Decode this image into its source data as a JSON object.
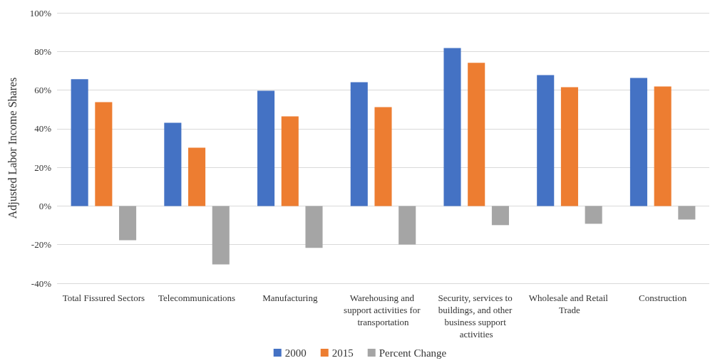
{
  "chart_data": {
    "type": "bar",
    "ylabel": "Adjusted Labor Income Shares",
    "categories": [
      "Total Fissured Sectors",
      "Telecommunications",
      "Manufacturing",
      "Warehousing and support activities for transportation",
      "Security, services to buildings, and other business support activities",
      "Wholesale and Retail Trade",
      "Construction"
    ],
    "series": [
      {
        "name": "2000",
        "color": "#4472c4",
        "values": [
          65.6,
          43.1,
          59.7,
          64.1,
          81.8,
          67.8,
          66.3
        ]
      },
      {
        "name": "2015",
        "color": "#ed7d31",
        "values": [
          53.8,
          30.2,
          46.4,
          51.2,
          74.1,
          61.5,
          61.9
        ]
      },
      {
        "name": "Percent Change",
        "color": "#a5a5a5",
        "values": [
          -17.7,
          -30.2,
          -21.7,
          -19.9,
          -9.9,
          -9.2,
          -7.0
        ]
      }
    ],
    "ylim": [
      -40,
      100
    ],
    "yticks": [
      {
        "value": -40,
        "label": "-40%"
      },
      {
        "value": -20,
        "label": "-20%"
      },
      {
        "value": 0,
        "label": "0%"
      },
      {
        "value": 20,
        "label": "20%"
      },
      {
        "value": 40,
        "label": "40%"
      },
      {
        "value": 60,
        "label": "60%"
      },
      {
        "value": 80,
        "label": "80%"
      },
      {
        "value": 100,
        "label": "100%"
      }
    ],
    "grid": "y",
    "legend": "bottom"
  }
}
